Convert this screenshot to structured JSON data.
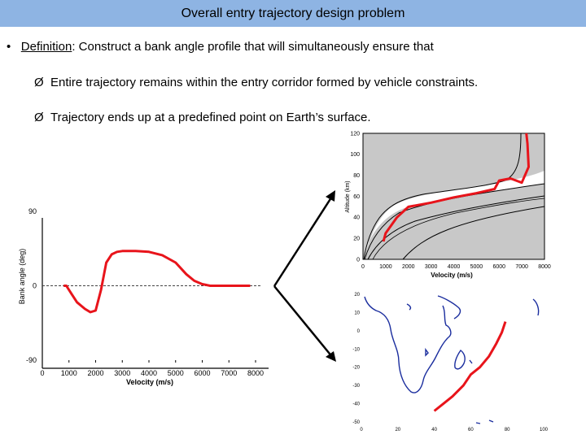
{
  "slide": {
    "title": "Overall entry trajectory design problem",
    "bullet_prefix": "Definition",
    "bullet_rest": ": Construct a bank angle profile that will simultaneously ensure that",
    "sub1": "Entire trajectory remains within the entry corridor formed by vehicle constraints.",
    "sub2": "Trajectory ends up at a predefined point on Earth’s surface.",
    "arrow_glyph": "Ø",
    "bullet_glyph": "•"
  },
  "chart_data": [
    {
      "type": "line",
      "name": "bank-angle-profile",
      "xlabel": "Velocity (m/s)",
      "ylabel": "Bank angle (deg)",
      "xticks": [
        0,
        1000,
        2000,
        3000,
        4000,
        5000,
        6000,
        7000,
        8000
      ],
      "yticks": [
        90,
        0,
        -90
      ],
      "xlim": [
        0,
        8000
      ],
      "ylim": [
        -90,
        90
      ],
      "reference_line_y": 0,
      "series": [
        {
          "color": "#e8141b",
          "x": [
            800,
            900,
            1100,
            1300,
            1600,
            1800,
            2000,
            2200,
            2400,
            2600,
            2800,
            3000,
            3200,
            3500,
            4000,
            4500,
            5000,
            5400,
            5700,
            6000,
            6300,
            6600,
            7000,
            7800
          ],
          "y": [
            0,
            0,
            -10,
            -20,
            -28,
            -32,
            -30,
            -5,
            28,
            38,
            41,
            42,
            42,
            42,
            41,
            37,
            28,
            14,
            6,
            2,
            0,
            0,
            0,
            0
          ]
        }
      ]
    },
    {
      "type": "line",
      "name": "altitude-velocity-corridor",
      "xlabel": "Velocity (m/s)",
      "ylabel": "Altitude (km)",
      "xticks": [
        0,
        1000,
        2000,
        3000,
        4000,
        5000,
        6000,
        7000,
        8000
      ],
      "yticks": [
        0,
        20,
        40,
        60,
        80,
        100,
        120
      ],
      "xlim": [
        0,
        8000
      ],
      "ylim": [
        0,
        120
      ],
      "grid": false,
      "series": [
        {
          "color": "#e8141b",
          "x": [
            900,
            1000,
            1500,
            2000,
            3000,
            4000,
            5000,
            5800,
            6000,
            6500,
            7000,
            7300,
            7250,
            7200
          ],
          "y": [
            17,
            25,
            40,
            50,
            54,
            59,
            63,
            67,
            75,
            77,
            73,
            88,
            110,
            120
          ]
        }
      ]
    },
    {
      "type": "line",
      "name": "ground-track-map",
      "xticks": [
        0,
        20,
        40,
        60,
        80,
        100
      ],
      "yticks": [
        20,
        10,
        0,
        -10,
        -20,
        -30,
        -40,
        -50
      ],
      "xlim": [
        0,
        100
      ],
      "ylim": [
        -50,
        20
      ],
      "series": [
        {
          "color": "#e8141b",
          "x": [
            40,
            45,
            50,
            56,
            60,
            65,
            70,
            74,
            77,
            79
          ],
          "y": [
            -44,
            -40,
            -36,
            -30,
            -24,
            -20,
            -14,
            -7,
            -1,
            5
          ]
        }
      ]
    }
  ]
}
